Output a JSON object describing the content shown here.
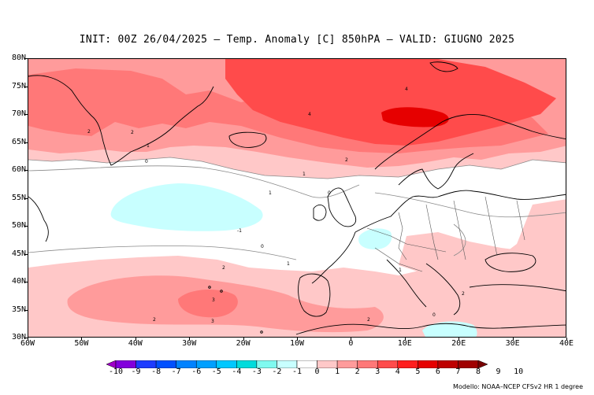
{
  "title": "INIT: 00Z 26/04/2025 – Temp. Anomaly [C] 850hPA – VALID: GIUGNO 2025",
  "credit": "Modello: NOAA–NCEP CFSv2 HR 1 degree",
  "map": {
    "projection": "lat-lon",
    "lon_range": [
      -60,
      40
    ],
    "lat_range": [
      30,
      80
    ],
    "lat_labels": [
      "80N",
      "75N",
      "70N",
      "65N",
      "60N",
      "55N",
      "50N",
      "45N",
      "40N",
      "35N",
      "30N"
    ],
    "lon_labels": [
      "60W",
      "50W",
      "40W",
      "30W",
      "20W",
      "10W",
      "0",
      "10E",
      "20E",
      "30E",
      "40E"
    ],
    "contour_labels": [
      "4",
      "4",
      "2",
      "1",
      "0",
      "1",
      "2",
      "2",
      "0",
      "1",
      "-1",
      "0",
      "1",
      "2",
      "2",
      "3",
      "2",
      "3",
      "0",
      "1",
      "2"
    ]
  },
  "colorbar": {
    "labels": [
      "-10",
      "-9",
      "-8",
      "-7",
      "-6",
      "-5",
      "-4",
      "-3",
      "-2",
      "-1",
      "0",
      "1",
      "2",
      "3",
      "4",
      "5",
      "6",
      "7",
      "8",
      "9",
      "10"
    ],
    "colors": [
      "#a000c8",
      "#8200dc",
      "#1e3cff",
      "#0050ff",
      "#0082ff",
      "#00a0ff",
      "#00c8ff",
      "#00dcdc",
      "#7ffaf0",
      "#c8ffff",
      "#ffffff",
      "#ffc8c8",
      "#ff9b9b",
      "#ff7878",
      "#ff4b4b",
      "#ff1e1e",
      "#e60000",
      "#be0000",
      "#a00000",
      "#780000"
    ]
  }
}
